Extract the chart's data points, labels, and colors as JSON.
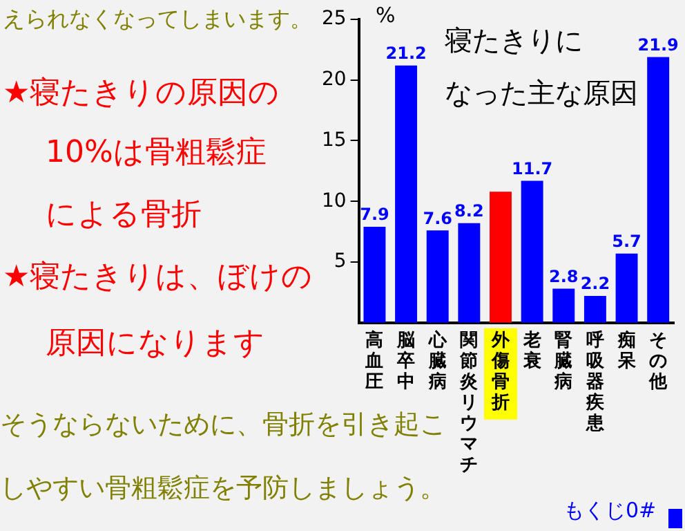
{
  "chart_data": {
    "type": "bar",
    "title": "寝たきりになった主な原因",
    "ylabel": "%",
    "categories": [
      "高血圧",
      "脳卒中",
      "心臓病",
      "関節炎リウマチ",
      "外傷骨折",
      "老衰",
      "腎臓病",
      "呼吸器疾患",
      "痴呆",
      "その他"
    ],
    "values": [
      7.9,
      21.2,
      7.6,
      8.2,
      10.8,
      11.7,
      2.8,
      2.2,
      5.7,
      21.9
    ],
    "value_labels": [
      "7.9",
      "21.2",
      "7.6",
      "8.2",
      null,
      "11.7",
      "2.8",
      "2.2",
      "5.7",
      "21.9"
    ],
    "colors": [
      "#0000ff",
      "#0000ff",
      "#0000ff",
      "#0000ff",
      "#ff0000",
      "#0000ff",
      "#0000ff",
      "#0000ff",
      "#0000ff",
      "#0000ff"
    ],
    "ylim": [
      0,
      25
    ],
    "yticks": [
      5,
      10,
      15,
      20,
      25
    ],
    "grid": false,
    "legend": false,
    "annotations": [
      "えられなくなってしまいます。",
      "★寝たきりの原因の",
      "10%は骨粗鬆症",
      "による骨折",
      "★寝たきりは、ぼけの",
      "原因になります",
      "そうならないために、骨折を引き起こ",
      "しやすい骨粗鬆症を予防しましょう。",
      "もくじ0#"
    ]
  }
}
